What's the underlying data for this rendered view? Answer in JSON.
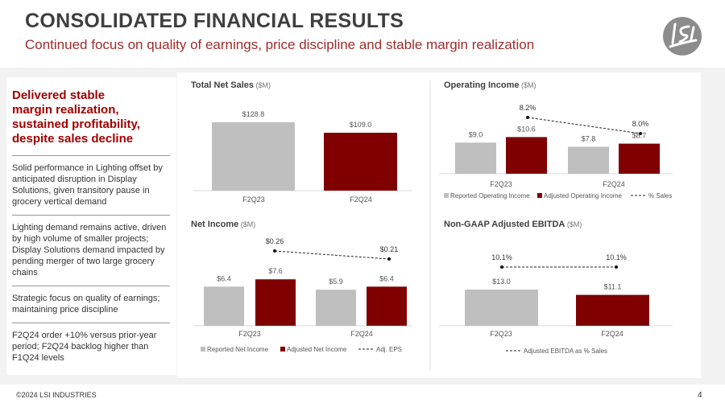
{
  "header": {
    "title": "CONSOLIDATED FINANCIAL RESULTS",
    "subtitle": "Continued focus on quality of earnings, price discipline and stable margin realization",
    "logo_text": "LSI"
  },
  "sidebar": {
    "heading": "Delivered stable margin realization, sustained profitability, despite sales decline",
    "points": [
      "Solid performance in Lighting offset by anticipated disruption in Display Solutions, given transitory pause in grocery vertical demand",
      "Lighting demand remains active, driven by high volume of smaller projects; Display Solutions demand impacted by pending merger of two large grocery chains",
      "Strategic focus on quality of earnings; maintaining price discipline",
      "F2Q24 order +10% versus prior-year period; F2Q24 backlog higher than F1Q24 levels"
    ]
  },
  "colors": {
    "reported": "#bfbfbf",
    "adjusted": "#800000",
    "title": "#3f3f3f",
    "accent": "#a02c2c"
  },
  "chart_data": [
    {
      "type": "bar",
      "title": "Total Net Sales",
      "unit": "($M)",
      "categories": [
        "F2Q23",
        "F2Q24"
      ],
      "series": [
        {
          "name": "Net Sales",
          "values": [
            128.8,
            109.0
          ],
          "labels": [
            "$128.8",
            "$109.0"
          ],
          "colors": [
            "#bfbfbf",
            "#800000"
          ]
        }
      ]
    },
    {
      "type": "bar",
      "title": "Operating Income",
      "unit": "($M)",
      "categories": [
        "F2Q23",
        "F2Q24"
      ],
      "series": [
        {
          "name": "Reported Operating Income",
          "values": [
            9.0,
            7.8
          ],
          "labels": [
            "$9.0",
            "$7.8"
          ]
        },
        {
          "name": "Adjusted Operating Income",
          "values": [
            10.6,
            8.7
          ],
          "labels": [
            "$10.6",
            "$8.7"
          ]
        }
      ],
      "line": {
        "name": "% Sales",
        "values": [
          8.2,
          8.0
        ],
        "labels": [
          "8.2%",
          "8.0%"
        ]
      }
    },
    {
      "type": "bar",
      "title": "Net Income",
      "unit": "($M)",
      "categories": [
        "F2Q23",
        "F2Q24"
      ],
      "series": [
        {
          "name": "Reported Net Income",
          "values": [
            6.4,
            5.9
          ],
          "labels": [
            "$6.4",
            "$5.9"
          ]
        },
        {
          "name": "Adjusted Net Income",
          "values": [
            7.6,
            6.4
          ],
          "labels": [
            "$7.6",
            "$6.4"
          ]
        }
      ],
      "line": {
        "name": "Adj. EPS",
        "values": [
          0.26,
          0.21
        ],
        "labels": [
          "$0.26",
          "$0.21"
        ]
      }
    },
    {
      "type": "bar",
      "title": "Non-GAAP Adjusted EBITDA",
      "unit": "($M)",
      "categories": [
        "F2Q23",
        "F2Q24"
      ],
      "series": [
        {
          "name": "Adjusted EBITDA",
          "values": [
            13.0,
            11.1
          ],
          "labels": [
            "$13.0",
            "$11.1"
          ],
          "colors": [
            "#bfbfbf",
            "#800000"
          ]
        }
      ],
      "line": {
        "name": "Adjusted EBITDA as % Sales",
        "values": [
          10.1,
          10.1
        ],
        "labels": [
          "10.1%",
          "10.1%"
        ]
      }
    }
  ],
  "footer": {
    "copyright": "©2024 LSI INDUSTRIES",
    "page": "4"
  }
}
